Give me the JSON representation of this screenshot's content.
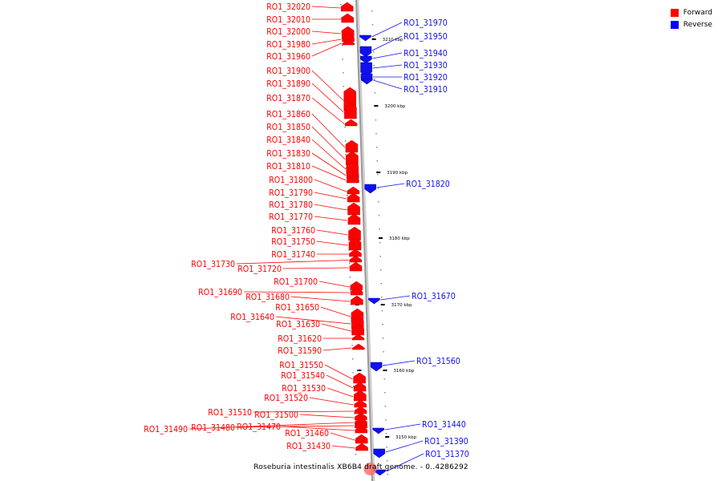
{
  "caption": "Roseburia intestinalis XB6B4 draft genome. - 0..4286292",
  "legend": [
    {
      "label": "Forward",
      "color": "#ff0000"
    },
    {
      "label": "Reverse",
      "color": "#0000ff"
    }
  ],
  "colors": {
    "forward": "#ff0000",
    "reverse": "#1010ee",
    "backbone": "#999999"
  },
  "scale_ticks": [
    "3210 kbp",
    "3200 kbp",
    "3190 kbp",
    "3180 kbp",
    "3170 kbp",
    "3160 kbp",
    "3150 kbp"
  ],
  "forward_genes": [
    "RO1_32020",
    "RO1_32010",
    "RO1_32000",
    "RO1_31980",
    "RO1_31960",
    "RO1_31900",
    "RO1_31890",
    "RO1_31870",
    "RO1_31860",
    "RO1_31850",
    "RO1_31840",
    "RO1_31830",
    "RO1_31810",
    "RO1_31800",
    "RO1_31790",
    "RO1_31780",
    "RO1_31770",
    "RO1_31760",
    "RO1_31750",
    "RO1_31740",
    "RO1_31730",
    "RO1_31720",
    "RO1_31700",
    "RO1_31690",
    "RO1_31680",
    "RO1_31650",
    "RO1_31640",
    "RO1_31630",
    "RO1_31620",
    "RO1_31590",
    "RO1_31550",
    "RO1_31540",
    "RO1_31530",
    "RO1_31520",
    "RO1_31510",
    "RO1_31500",
    "RO1_31490",
    "RO1_31480",
    "RO1_31470",
    "RO1_31460",
    "RO1_31430"
  ],
  "reverse_genes": [
    "RO1_31970",
    "RO1_31950",
    "RO1_31940",
    "RO1_31930",
    "RO1_31920",
    "RO1_31910",
    "RO1_31820",
    "RO1_31670",
    "RO1_31560",
    "RO1_31440",
    "RO1_31390",
    "RO1_31370"
  ]
}
